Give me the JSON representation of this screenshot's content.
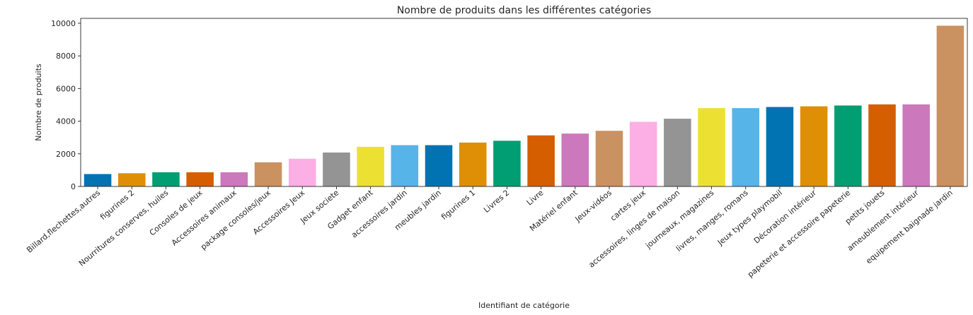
{
  "chart_data": {
    "type": "bar",
    "title": "Nombre de produits dans les différentes catégories",
    "xlabel": "Identifiant de catégorie",
    "ylabel": "Nombre de produits",
    "ylim": [
      0,
      10300
    ],
    "yticks": [
      0,
      2000,
      4000,
      6000,
      8000,
      10000
    ],
    "grid": false,
    "legend": "none",
    "categories": [
      "Billard,flechettes,autres",
      "figurines 2",
      "Nourritures conserves, huiles",
      "Consoles de jeux",
      "Accessoires animaux",
      "package consoles/jeux",
      "Accessoires Jeux",
      "Jeux societe",
      "Gadget enfant",
      "accessoires jardin",
      "meubles jardin",
      "figurines 1",
      "Livres 2",
      "Livre",
      "Matériel enfant",
      "Jeux-vidéos",
      "cartes jeux",
      "accessoires, linges de maison",
      "journeaux, magazines",
      "livres, manges, romans",
      "Jeux types playmobil",
      "Décoration intérieur",
      "papeterie et accessoire papeterie",
      "petits jouets",
      "ameublement intérieur",
      "equipement baignade jardin"
    ],
    "values": [
      760,
      810,
      870,
      870,
      870,
      1480,
      1700,
      2080,
      2430,
      2530,
      2530,
      2690,
      2800,
      3130,
      3240,
      3410,
      3960,
      4150,
      4800,
      4800,
      4870,
      4910,
      4960,
      5030,
      5030,
      9850
    ],
    "colors": [
      "#0173b2",
      "#de8f05",
      "#029e73",
      "#d55e00",
      "#cc78bc",
      "#ca9161",
      "#fbafe4",
      "#949494",
      "#ece133",
      "#56b4e9"
    ]
  }
}
